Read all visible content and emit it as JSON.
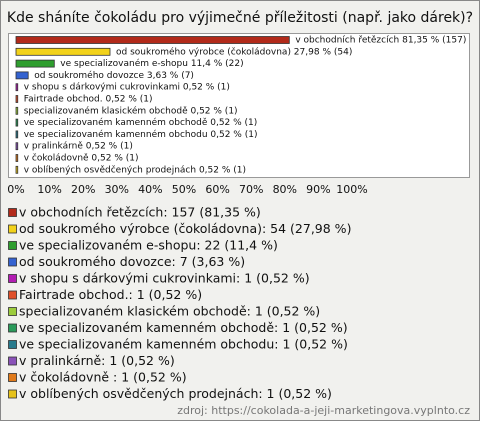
{
  "chart_data": {
    "type": "hbar",
    "title": "Kde sháníte čokoládu pro výjimečné příležitosti (např. jako dárek)?",
    "categories": [
      "v obchodních řetězcích",
      "od soukromého výrobce (čokoládovna)",
      "ve specializovaném e-shopu",
      "od soukromého dovozce",
      "v shopu s dárkovými cukrovinkami",
      "Fairtrade obchod.",
      "specializovaném klasickém obchodě",
      "ve specializovaném kamenném obchodě",
      "ve specializovaném kamenném obchodu",
      "v pralinkárně",
      "v čokoládovně",
      "v oblíbených osvědčených prodejnách"
    ],
    "values": [
      81.35,
      27.98,
      11.4,
      3.63,
      0.52,
      0.52,
      0.52,
      0.52,
      0.52,
      0.52,
      0.52,
      0.52
    ],
    "value_labels": [
      "v obchodních řetězcích 81,35 % (157)",
      "od soukromého výrobce (čokoládovna) 27,98 % (54)",
      "ve specializovaném e-shopu 11,4 % (22)",
      "od soukromého dovozce 3,63 % (7)",
      "v shopu s dárkovými cukrovinkami 0,52 % (1)",
      "Fairtrade obchod. 0,52 % (1)",
      "specializovaném klasickém obchodě 0,52 % (1)",
      "ve specializovaném kamenném obchodě 0,52 % (1)",
      "ve specializovaném kamenném obchodu 0,52 % (1)",
      "v pralinkárně 0,52 % (1)",
      "v čokoládovně  0,52 % (1)",
      "v oblíbených osvědčených prodejnách 0,52 % (1)"
    ],
    "legend_labels": [
      "v obchodních řetězcích: 157 (81,35 %)",
      "od soukromého výrobce (čokoládovna): 54 (27,98 %)",
      "ve specializovaném e-shopu: 22 (11,4 %)",
      "od soukromého dovozce: 7 (3,63 %)",
      "v shopu s dárkovými cukrovinkami: 1 (0,52 %)",
      "Fairtrade obchod.: 1 (0,52 %)",
      "specializovaném klasickém obchodě: 1 (0,52 %)",
      "ve specializovaném kamenném obchodě: 1 (0,52 %)",
      "ve specializovaném kamenném obchodu: 1 (0,52 %)",
      "v pralinkárně: 1 (0,52 %)",
      "v čokoládovně : 1 (0,52 %)",
      "v oblíbených osvědčených prodejnách: 1 (0,52 %)"
    ],
    "colors": [
      "#b22a1a",
      "#f2d21a",
      "#2f9e2f",
      "#3462d0",
      "#b21cb2",
      "#e0502a",
      "#9ccc3c",
      "#2a9a5a",
      "#287a8c",
      "#8a52b8",
      "#e07a1a",
      "#e6c21a"
    ],
    "xlim": [
      0,
      100
    ],
    "xticks": [
      {
        "value": 0,
        "label": "0%"
      },
      {
        "value": 10,
        "label": "10%"
      },
      {
        "value": 20,
        "label": "20%"
      },
      {
        "value": 30,
        "label": "30%"
      },
      {
        "value": 40,
        "label": "40%"
      },
      {
        "value": 50,
        "label": "50%"
      },
      {
        "value": 60,
        "label": "60%"
      },
      {
        "value": 70,
        "label": "70%"
      },
      {
        "value": 80,
        "label": "80%"
      },
      {
        "value": 90,
        "label": "90%"
      },
      {
        "value": 100,
        "label": "100%"
      }
    ],
    "source": "zdroj: https://cokolada-a-jeji-marketingova.vyplnto.cz"
  }
}
